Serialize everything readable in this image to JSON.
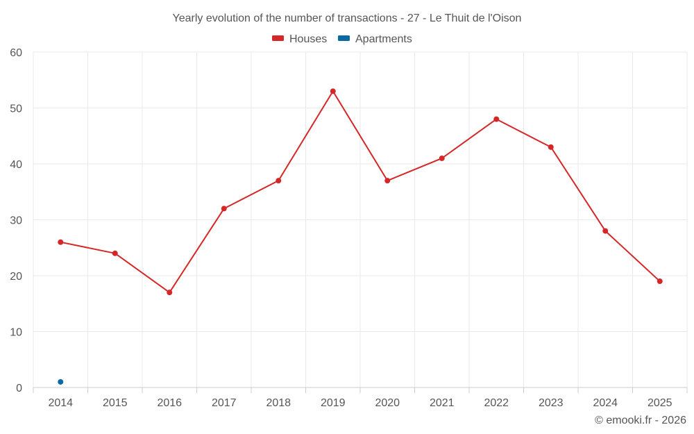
{
  "chart_data": {
    "type": "line",
    "title": "Yearly evolution of the number of transactions - 27 - Le Thuit de l'Oison",
    "xlabel": "",
    "ylabel": "",
    "categories": [
      "2014",
      "2015",
      "2016",
      "2017",
      "2018",
      "2019",
      "2020",
      "2021",
      "2022",
      "2023",
      "2024",
      "2025"
    ],
    "ylim": [
      0,
      60
    ],
    "yticks": [
      0,
      10,
      20,
      30,
      40,
      50,
      60
    ],
    "grid": true,
    "legend_position": "top-center",
    "series": [
      {
        "name": "Houses",
        "color": "#d62728",
        "values": [
          26,
          24,
          17,
          32,
          37,
          53,
          37,
          41,
          48,
          43,
          28,
          19
        ]
      },
      {
        "name": "Apartments",
        "color": "#0b6aa2",
        "values": [
          1,
          null,
          null,
          null,
          null,
          null,
          null,
          null,
          null,
          null,
          null,
          null
        ]
      }
    ]
  },
  "credit": "© emooki.fr - 2026"
}
